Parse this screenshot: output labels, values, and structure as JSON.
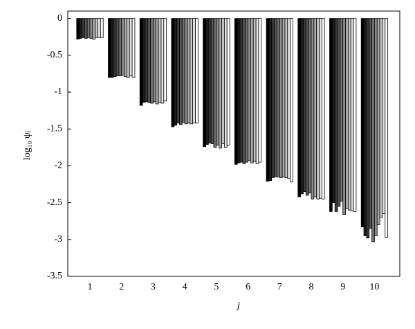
{
  "chart_data": {
    "type": "bar",
    "xlabel": "j",
    "ylabel": "log₁₀ ψⱼ",
    "categories": [
      "1",
      "2",
      "3",
      "4",
      "5",
      "6",
      "7",
      "8",
      "9",
      "10"
    ],
    "ylim": [
      -3.5,
      0.1
    ],
    "yticks": [
      0,
      -0.5,
      -1,
      -1.5,
      -2,
      -2.5,
      -3,
      -3.5
    ],
    "series": [
      {
        "color": "#000000",
        "values": [
          -0.28,
          -0.8,
          -1.18,
          -1.47,
          -1.74,
          -1.98,
          -2.21,
          -2.42,
          -2.62,
          -2.83
        ]
      },
      {
        "color": "#1c1c1c",
        "values": [
          -0.27,
          -0.8,
          -1.14,
          -1.45,
          -1.71,
          -1.96,
          -2.2,
          -2.38,
          -2.5,
          -2.95
        ]
      },
      {
        "color": "#393939",
        "values": [
          -0.26,
          -0.79,
          -1.13,
          -1.42,
          -1.69,
          -1.95,
          -2.16,
          -2.35,
          -2.62,
          -2.98
        ]
      },
      {
        "color": "#555555",
        "values": [
          -0.27,
          -0.78,
          -1.14,
          -1.44,
          -1.7,
          -1.97,
          -2.15,
          -2.4,
          -2.55,
          -2.85
        ]
      },
      {
        "color": "#717171",
        "values": [
          -0.26,
          -0.78,
          -1.15,
          -1.41,
          -1.75,
          -1.95,
          -2.15,
          -2.37,
          -2.48,
          -3.03
        ]
      },
      {
        "color": "#8e8e8e",
        "values": [
          -0.27,
          -0.77,
          -1.13,
          -1.43,
          -1.72,
          -1.93,
          -2.16,
          -2.45,
          -2.66,
          -2.95
        ]
      },
      {
        "color": "#aaaaaa",
        "values": [
          -0.28,
          -0.79,
          -1.16,
          -1.42,
          -1.76,
          -1.96,
          -2.15,
          -2.42,
          -2.58,
          -2.8
        ]
      },
      {
        "color": "#c6c6c6",
        "values": [
          -0.26,
          -0.8,
          -1.14,
          -1.43,
          -1.7,
          -1.94,
          -2.16,
          -2.45,
          -2.6,
          -2.7
        ]
      },
      {
        "color": "#e3e3e3",
        "values": [
          -0.26,
          -0.78,
          -1.15,
          -1.42,
          -1.75,
          -1.97,
          -2.17,
          -2.44,
          -2.61,
          -2.65
        ]
      },
      {
        "color": "#ffffff",
        "values": [
          -0.26,
          -0.8,
          -1.12,
          -1.42,
          -1.72,
          -1.95,
          -2.22,
          -2.45,
          -2.62,
          -2.97
        ]
      }
    ]
  }
}
